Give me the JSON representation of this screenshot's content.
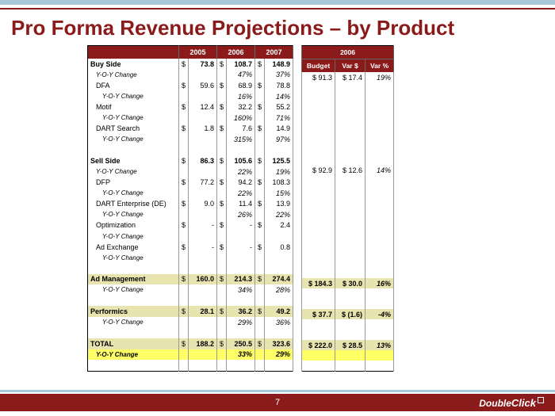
{
  "title": "Pro Forma Revenue Projections – by Product",
  "page_number": "7",
  "logo": "DoubleClick",
  "left": {
    "headers": [
      "2005",
      "2006",
      "2007"
    ],
    "rows": [
      {
        "type": "bold",
        "label": "Buy Side",
        "v": [
          {
            "d": "$",
            "n": "73.8"
          },
          {
            "d": "$",
            "n": "108.7"
          },
          {
            "d": "$",
            "n": "148.9"
          }
        ]
      },
      {
        "type": "yoy",
        "label": "Y-O-Y Change",
        "v": [
          {
            "d": "",
            "n": ""
          },
          {
            "d": "",
            "n": "47%"
          },
          {
            "d": "",
            "n": "37%"
          }
        ]
      },
      {
        "type": "ind",
        "label": "DFA",
        "v": [
          {
            "d": "$",
            "n": "59.6"
          },
          {
            "d": "$",
            "n": "68.9"
          },
          {
            "d": "$",
            "n": "78.8"
          }
        ]
      },
      {
        "type": "yoy2",
        "label": "Y-O-Y Change",
        "v": [
          {
            "d": "",
            "n": ""
          },
          {
            "d": "",
            "n": "16%"
          },
          {
            "d": "",
            "n": "14%"
          }
        ]
      },
      {
        "type": "ind",
        "label": "Motif",
        "v": [
          {
            "d": "$",
            "n": "12.4"
          },
          {
            "d": "$",
            "n": "32.2"
          },
          {
            "d": "$",
            "n": "55.2"
          }
        ]
      },
      {
        "type": "yoy2",
        "label": "Y-O-Y Change",
        "v": [
          {
            "d": "",
            "n": ""
          },
          {
            "d": "",
            "n": "160%"
          },
          {
            "d": "",
            "n": "71%"
          }
        ]
      },
      {
        "type": "ind",
        "label": "DART Search",
        "v": [
          {
            "d": "$",
            "n": "1.8"
          },
          {
            "d": "$",
            "n": "7.6"
          },
          {
            "d": "$",
            "n": "14.9"
          }
        ]
      },
      {
        "type": "yoy2",
        "label": "Y-O-Y Change",
        "v": [
          {
            "d": "",
            "n": ""
          },
          {
            "d": "",
            "n": "315%"
          },
          {
            "d": "",
            "n": "97%"
          }
        ]
      },
      {
        "type": "blank"
      },
      {
        "type": "bold",
        "label": "Sell Side",
        "v": [
          {
            "d": "$",
            "n": "86.3"
          },
          {
            "d": "$",
            "n": "105.6"
          },
          {
            "d": "$",
            "n": "125.5"
          }
        ]
      },
      {
        "type": "yoy",
        "label": "Y-O-Y Change",
        "v": [
          {
            "d": "",
            "n": ""
          },
          {
            "d": "",
            "n": "22%"
          },
          {
            "d": "",
            "n": "19%"
          }
        ]
      },
      {
        "type": "ind",
        "label": "DFP",
        "v": [
          {
            "d": "$",
            "n": "77.2"
          },
          {
            "d": "$",
            "n": "94.2"
          },
          {
            "d": "$",
            "n": "108.3"
          }
        ]
      },
      {
        "type": "yoy2",
        "label": "Y-O-Y Change",
        "v": [
          {
            "d": "",
            "n": ""
          },
          {
            "d": "",
            "n": "22%"
          },
          {
            "d": "",
            "n": "15%"
          }
        ]
      },
      {
        "type": "ind",
        "label": "DART Enterprise (DE)",
        "v": [
          {
            "d": "$",
            "n": "9.0"
          },
          {
            "d": "$",
            "n": "11.4"
          },
          {
            "d": "$",
            "n": "13.9"
          }
        ]
      },
      {
        "type": "yoy2",
        "label": "Y-O-Y Change",
        "v": [
          {
            "d": "",
            "n": ""
          },
          {
            "d": "",
            "n": "26%"
          },
          {
            "d": "",
            "n": "22%"
          }
        ]
      },
      {
        "type": "ind",
        "label": "Optimization",
        "v": [
          {
            "d": "$",
            "n": "-"
          },
          {
            "d": "$",
            "n": "-"
          },
          {
            "d": "$",
            "n": "2.4"
          }
        ]
      },
      {
        "type": "yoy2",
        "label": "Y-O-Y Change",
        "v": [
          {
            "d": "",
            "n": ""
          },
          {
            "d": "",
            "n": ""
          },
          {
            "d": "",
            "n": ""
          }
        ]
      },
      {
        "type": "ind",
        "label": "Ad Exchange",
        "v": [
          {
            "d": "$",
            "n": "-"
          },
          {
            "d": "$",
            "n": "-"
          },
          {
            "d": "$",
            "n": "0.8"
          }
        ]
      },
      {
        "type": "yoy2",
        "label": "Y-O-Y Change",
        "v": [
          {
            "d": "",
            "n": ""
          },
          {
            "d": "",
            "n": ""
          },
          {
            "d": "",
            "n": ""
          }
        ]
      },
      {
        "type": "blank"
      },
      {
        "type": "khaki",
        "label": "Ad Management",
        "v": [
          {
            "d": "$",
            "n": "160.0"
          },
          {
            "d": "$",
            "n": "214.3"
          },
          {
            "d": "$",
            "n": "274.4"
          }
        ]
      },
      {
        "type": "yoy2",
        "label": "Y-O-Y Change",
        "v": [
          {
            "d": "",
            "n": ""
          },
          {
            "d": "",
            "n": "34%"
          },
          {
            "d": "",
            "n": "28%"
          }
        ]
      },
      {
        "type": "blank"
      },
      {
        "type": "khaki",
        "label": "Performics",
        "v": [
          {
            "d": "$",
            "n": "28.1"
          },
          {
            "d": "$",
            "n": "36.2"
          },
          {
            "d": "$",
            "n": "49.2"
          }
        ]
      },
      {
        "type": "yoy2",
        "label": "Y-O-Y Change",
        "v": [
          {
            "d": "",
            "n": ""
          },
          {
            "d": "",
            "n": "29%"
          },
          {
            "d": "",
            "n": "36%"
          }
        ]
      },
      {
        "type": "blank"
      },
      {
        "type": "khaki",
        "label": "TOTAL",
        "v": [
          {
            "d": "$",
            "n": "188.2"
          },
          {
            "d": "$",
            "n": "250.5"
          },
          {
            "d": "$",
            "n": "323.6"
          }
        ]
      },
      {
        "type": "yellow",
        "label": "Y-O-Y Change",
        "v": [
          {
            "d": "",
            "n": ""
          },
          {
            "d": "",
            "n": "33%"
          },
          {
            "d": "",
            "n": "29%"
          }
        ]
      },
      {
        "type": "blank"
      }
    ]
  },
  "right": {
    "super_header": "2006",
    "headers": [
      "Budget",
      "Var $",
      "Var %"
    ],
    "rows": [
      {
        "type": "norm",
        "b": "$  91.3",
        "v": "$ 17.4",
        "p": "19%"
      },
      {
        "type": "blank"
      },
      {
        "type": "blank"
      },
      {
        "type": "blank"
      },
      {
        "type": "blank"
      },
      {
        "type": "blank"
      },
      {
        "type": "blank"
      },
      {
        "type": "blank"
      },
      {
        "type": "blank"
      },
      {
        "type": "norm",
        "b": "$  92.9",
        "v": "$ 12.6",
        "p": "14%"
      },
      {
        "type": "blank"
      },
      {
        "type": "blank"
      },
      {
        "type": "blank"
      },
      {
        "type": "blank"
      },
      {
        "type": "blank"
      },
      {
        "type": "blank"
      },
      {
        "type": "blank"
      },
      {
        "type": "blank"
      },
      {
        "type": "blank"
      },
      {
        "type": "blank"
      },
      {
        "type": "khaki",
        "b": "$ 184.3",
        "v": "$ 30.0",
        "p": "16%"
      },
      {
        "type": "blank"
      },
      {
        "type": "blank"
      },
      {
        "type": "khaki",
        "b": "$  37.7",
        "v": "$ (1.6)",
        "p": "-4%"
      },
      {
        "type": "blank"
      },
      {
        "type": "blank"
      },
      {
        "type": "khaki",
        "b": "$ 222.0",
        "v": "$ 28.5",
        "p": "13%"
      },
      {
        "type": "yellow"
      },
      {
        "type": "blank"
      }
    ]
  }
}
